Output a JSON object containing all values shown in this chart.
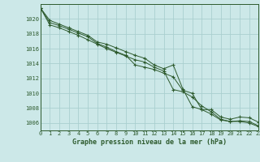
{
  "title": "Graphe pression niveau de la mer (hPa)",
  "background_color": "#cce8e8",
  "grid_color": "#aacfcf",
  "line_color": "#2d5a2d",
  "spine_color": "#2d5a2d",
  "xlim": [
    0,
    23
  ],
  "ylim": [
    1005.0,
    1022.0
  ],
  "yticks": [
    1006,
    1008,
    1010,
    1012,
    1014,
    1016,
    1018,
    1020
  ],
  "xticks": [
    0,
    1,
    2,
    3,
    4,
    5,
    6,
    7,
    8,
    9,
    10,
    11,
    12,
    13,
    14,
    15,
    16,
    17,
    18,
    19,
    20,
    21,
    22,
    23
  ],
  "series": [
    [
      1021.5,
      1019.2,
      1018.8,
      1018.3,
      1017.8,
      1017.2,
      1016.6,
      1016.0,
      1015.5,
      1015.0,
      1014.5,
      1014.2,
      1013.5,
      1013.0,
      1010.5,
      1010.2,
      1009.5,
      1008.3,
      1007.5,
      1006.5,
      1006.2,
      1006.2,
      1006.0,
      1005.5
    ],
    [
      1021.5,
      1019.5,
      1019.1,
      1018.6,
      1018.1,
      1017.6,
      1016.7,
      1016.2,
      1015.6,
      1015.1,
      1013.8,
      1013.5,
      1013.2,
      1012.7,
      1012.2,
      1010.4,
      1010.0,
      1007.8,
      1007.2,
      1006.4,
      1006.2,
      1006.3,
      1006.2,
      1005.6
    ],
    [
      1021.5,
      1019.8,
      1019.3,
      1018.8,
      1018.3,
      1017.8,
      1016.9,
      1016.6,
      1016.1,
      1015.6,
      1015.1,
      1014.7,
      1013.8,
      1013.3,
      1013.8,
      1010.6,
      1008.2,
      1007.8,
      1007.8,
      1006.8,
      1006.5,
      1006.8,
      1006.7,
      1006.1
    ]
  ]
}
